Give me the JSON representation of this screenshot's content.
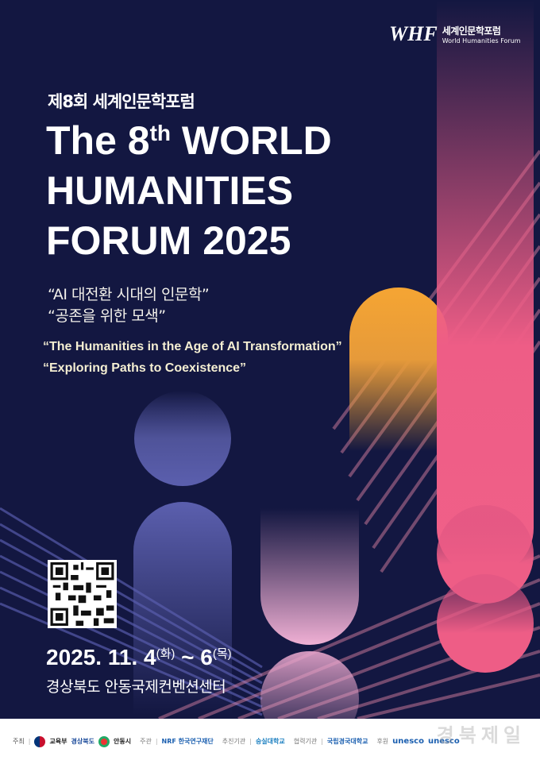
{
  "logo": {
    "mark": "WHF",
    "name_kr": "세계인문학포럼",
    "name_en": "World Humanities Forum"
  },
  "title_kr": "제8회 세계인문학포럼",
  "title_en": {
    "line1_pre": "The 8",
    "line1_sup": "th",
    "line1_post": " WORLD",
    "line2": "HUMANITIES",
    "line3": "FORUM 2025"
  },
  "theme_kr": [
    "“AI 대전환 시대의 인문학”",
    "“공존을 위한 모색”"
  ],
  "theme_en": [
    "“The Humanities in the Age of AI Transformation”",
    "“Exploring Paths to Coexistence”"
  ],
  "date": {
    "main1": "2025. 11. 4",
    "day1": "(화)",
    "sep": " ~ 6",
    "day2": "(목)"
  },
  "venue": "경상북도 안동국제컨벤션센터",
  "colors": {
    "background": "#131741",
    "purple": "#5b5fae",
    "orange": "#f3a33a",
    "pink": "#ee5d86",
    "cream": "#f4eed2"
  },
  "footer": {
    "host_label": "주최",
    "hosts": [
      "교육부",
      "경상북도",
      "안동시"
    ],
    "organizer_label": "주관",
    "organizers": [
      "NRF 한국연구재단"
    ],
    "promoter_label": "추진기관",
    "promoters": [
      "숭실대학교"
    ],
    "partner_label": "협력기관",
    "partners": [
      "국립경국대학교"
    ],
    "sponsor_label": "후원",
    "sponsors": [
      "unesco",
      "unesco"
    ]
  },
  "watermark": "경북제일"
}
